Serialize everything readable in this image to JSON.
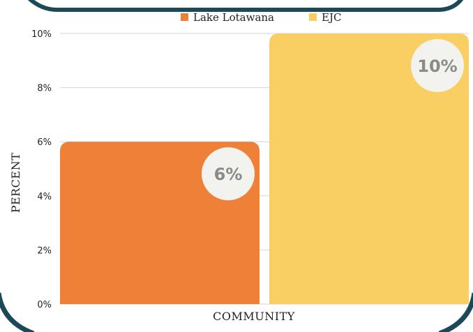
{
  "chart_data": {
    "type": "bar",
    "title": "",
    "xlabel": "COMMUNITY",
    "ylabel": "PERCENT",
    "ylim": [
      0,
      10
    ],
    "yticks": [
      0,
      2,
      4,
      6,
      8,
      10
    ],
    "y_tick_suffix": "%",
    "grid": true,
    "legend_position": "top-center",
    "categories": [
      "COMMUNITY"
    ],
    "series": [
      {
        "name": "Lake Lotawana",
        "values": [
          6
        ],
        "color": "#ee8038",
        "label": "6%"
      },
      {
        "name": "EJC",
        "values": [
          10
        ],
        "color": "#f9cf63",
        "label": "10%"
      }
    ],
    "value_badge_color": "#f2f2ef",
    "frame_color": "#1c4957"
  }
}
